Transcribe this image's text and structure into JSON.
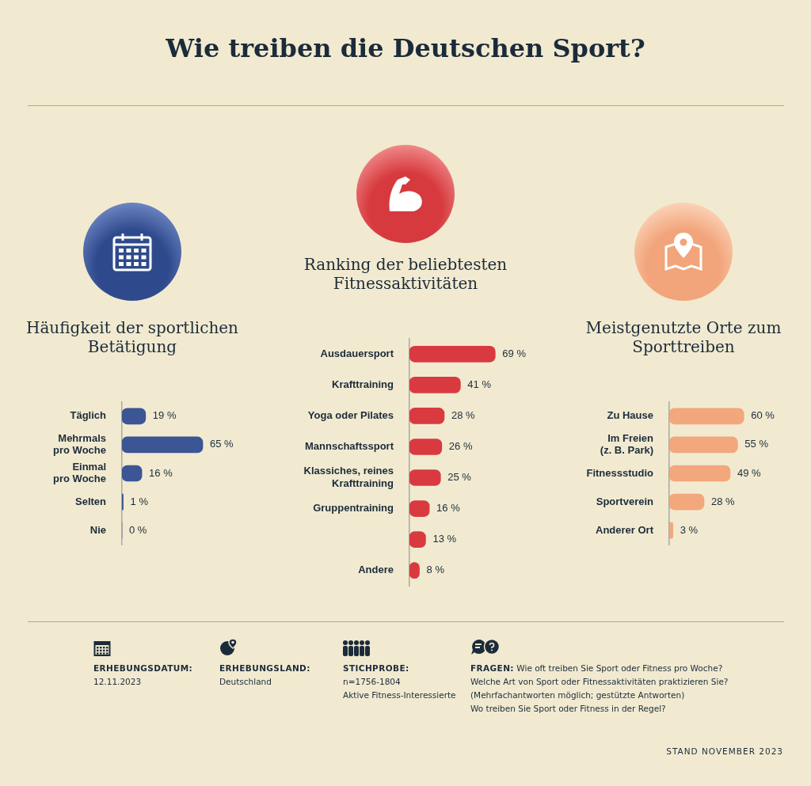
{
  "chart_data": [
    {
      "type": "other",
      "title": "Wie treiben die Deutschen Sport?"
    },
    {
      "type": "bar",
      "orientation": "horizontal",
      "title": "Häufigkeit der sportlichen Betätigung",
      "categories": [
        "Täglich",
        "Mehrmals pro Woche",
        "Einmal pro Woche",
        "Selten",
        "Nie"
      ],
      "values": [
        19,
        65,
        16,
        1,
        0
      ],
      "value_labels": [
        "19 %",
        "65 %",
        "16 %",
        "1 %",
        "0 %"
      ],
      "color": "#3b5595",
      "tick_labels": "y"
    },
    {
      "type": "bar",
      "orientation": "horizontal",
      "title": "Ranking der beliebtesten Fitnessaktivitäten",
      "categories": [
        "Ausdauersport",
        "Krafttraining",
        "Yoga oder Pilates",
        "Mannschaftssport",
        "Klassiches, reines Krafttraining",
        "Gruppentraining",
        null,
        "Andere"
      ],
      "values": [
        69,
        41,
        28,
        26,
        25,
        16,
        13,
        8
      ],
      "value_labels": [
        "69 %",
        "41 %",
        "28 %",
        "26 %",
        "25 %",
        "16 %",
        "13 %",
        "8 %"
      ],
      "color": "#d93a40",
      "tick_labels": "y"
    },
    {
      "type": "bar",
      "orientation": "horizontal",
      "title": "Meistgenutzte Orte zum Sporttreiben",
      "categories": [
        "Zu Hause",
        "Im Freien (z. B. Park)",
        "Fitnessstudio",
        "Sportverein",
        "Anderer Ort"
      ],
      "values": [
        60,
        55,
        49,
        28,
        3
      ],
      "value_labels": [
        "60 %",
        "55 %",
        "49 %",
        "28 %",
        "3 %"
      ],
      "color": "#f3a77c",
      "tick_labels": "y"
    },
    {
      "type": "other",
      "annotations": [
        "ERHEBUNGSDATUM:\n12.11.2023",
        "ERHEBUNGSLAND:\nDeutschland",
        "STICHPROBE:\nn=1756-1804\nAktive Fitness-Interessierte",
        "FRAGEN: Wie oft treiben Sie Sport oder Fitness pro Woche?\nWelche Art von Sport oder Fitnessaktivitäten praktizieren Sie?\n(Mehrfachantworten möglich; gestützte Antworten)\nWo treiben Sie Sport oder Fitness in der Regel?",
        "STAND NOVEMBER 2023"
      ]
    }
  ]
}
